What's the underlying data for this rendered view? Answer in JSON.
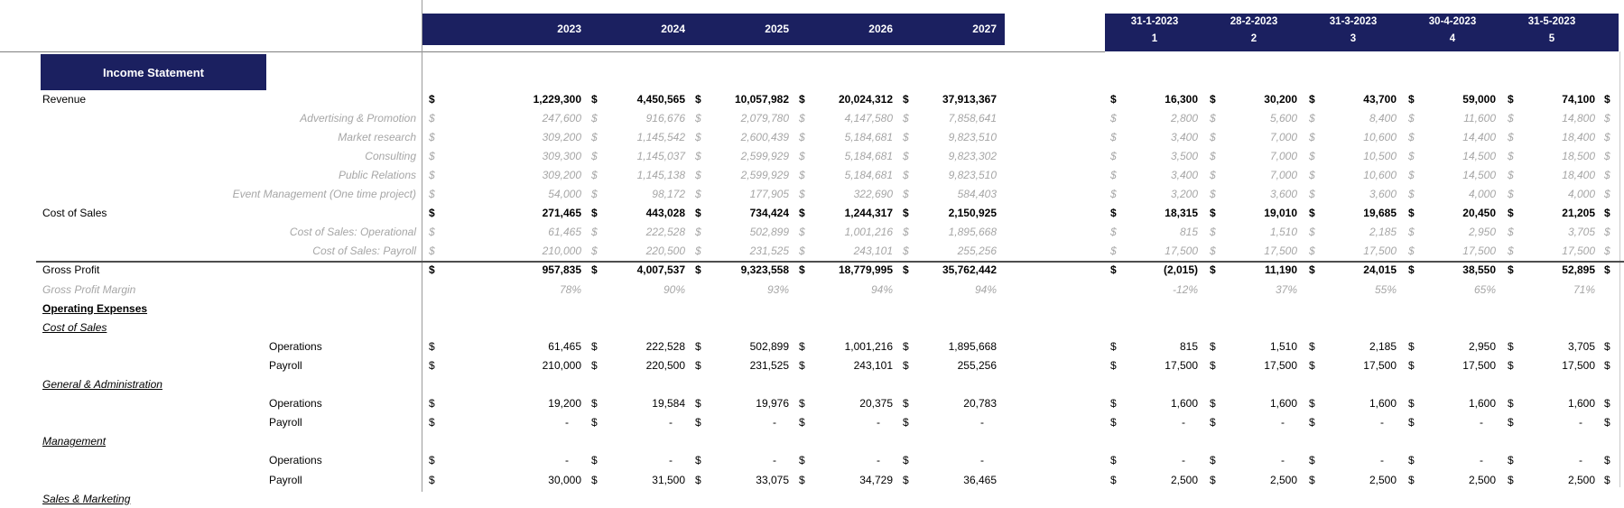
{
  "title": "Income Statement",
  "currency_symbol": "$",
  "colors": {
    "header_navy": "#1b2060",
    "gray_text": "#a6a6a6",
    "grid_gray": "#808080"
  },
  "year_header": {
    "columns": [
      "2023",
      "2024",
      "2025",
      "2026",
      "2027"
    ]
  },
  "month_header": {
    "columns": [
      {
        "date": "31-1-2023",
        "num": "1"
      },
      {
        "date": "28-2-2023",
        "num": "2"
      },
      {
        "date": "31-3-2023",
        "num": "3"
      },
      {
        "date": "30-4-2023",
        "num": "4"
      },
      {
        "date": "31-5-2023",
        "num": "5"
      }
    ],
    "partial_sixth_column_currency": "$"
  },
  "rows": [
    {
      "label": "Revenue",
      "label_style": "main",
      "value_style": "bold",
      "years": [
        "1,229,300",
        "4,450,565",
        "10,057,982",
        "20,024,312",
        "37,913,367"
      ],
      "months": [
        "16,300",
        "30,200",
        "43,700",
        "59,000",
        "74,100"
      ]
    },
    {
      "label": "Advertising & Promotion",
      "label_style": "sub",
      "value_style": "gray",
      "years": [
        "247,600",
        "916,676",
        "2,079,780",
        "4,147,580",
        "7,858,641"
      ],
      "months": [
        "2,800",
        "5,600",
        "8,400",
        "11,600",
        "14,800"
      ]
    },
    {
      "label": "Market research",
      "label_style": "sub",
      "value_style": "gray",
      "years": [
        "309,200",
        "1,145,542",
        "2,600,439",
        "5,184,681",
        "9,823,510"
      ],
      "months": [
        "3,400",
        "7,000",
        "10,600",
        "14,400",
        "18,400"
      ]
    },
    {
      "label": "Consulting",
      "label_style": "sub",
      "value_style": "gray",
      "years": [
        "309,300",
        "1,145,037",
        "2,599,929",
        "5,184,681",
        "9,823,302"
      ],
      "months": [
        "3,500",
        "7,000",
        "10,500",
        "14,500",
        "18,500"
      ]
    },
    {
      "label": "Public Relations",
      "label_style": "sub",
      "value_style": "gray",
      "years": [
        "309,200",
        "1,145,138",
        "2,599,929",
        "5,184,681",
        "9,823,510"
      ],
      "months": [
        "3,400",
        "7,000",
        "10,600",
        "14,500",
        "18,400"
      ]
    },
    {
      "label": "Event Management (One time project)",
      "label_style": "sub",
      "value_style": "gray",
      "years": [
        "54,000",
        "98,172",
        "177,905",
        "322,690",
        "584,403"
      ],
      "months": [
        "3,200",
        "3,600",
        "3,600",
        "4,000",
        "4,000"
      ]
    },
    {
      "label": "Cost of Sales",
      "label_style": "main",
      "value_style": "bold",
      "years": [
        "271,465",
        "443,028",
        "734,424",
        "1,244,317",
        "2,150,925"
      ],
      "months": [
        "18,315",
        "19,010",
        "19,685",
        "20,450",
        "21,205"
      ]
    },
    {
      "label": "Cost of Sales: Operational",
      "label_style": "sub",
      "value_style": "gray",
      "years": [
        "61,465",
        "222,528",
        "502,899",
        "1,001,216",
        "1,895,668"
      ],
      "months": [
        "815",
        "1,510",
        "2,185",
        "2,950",
        "3,705"
      ]
    },
    {
      "label": "Cost of Sales: Payroll",
      "label_style": "sub",
      "value_style": "gray",
      "years": [
        "210,000",
        "220,500",
        "231,525",
        "243,101",
        "255,256"
      ],
      "months": [
        "17,500",
        "17,500",
        "17,500",
        "17,500",
        "17,500"
      ]
    },
    {
      "label": "Gross Profit",
      "label_style": "main",
      "value_style": "bold",
      "top_border": true,
      "years": [
        "957,835",
        "4,007,537",
        "9,323,558",
        "18,779,995",
        "35,762,442"
      ],
      "months": [
        "(2,015)",
        "11,190",
        "24,015",
        "38,550",
        "52,895"
      ]
    },
    {
      "label": "Gross Profit Margin",
      "label_style": "main-gray",
      "value_style": "gray",
      "percent": true,
      "years": [
        "78%",
        "90%",
        "93%",
        "94%",
        "94%"
      ],
      "months": [
        "-12%",
        "37%",
        "55%",
        "65%",
        "71%"
      ]
    },
    {
      "label": "Operating Expenses",
      "label_style": "section-bold"
    },
    {
      "label": "Cost of Sales",
      "label_style": "section-italic"
    },
    {
      "label": "Operations",
      "label_style": "indent",
      "value_style": "normal",
      "years": [
        "61,465",
        "222,528",
        "502,899",
        "1,001,216",
        "1,895,668"
      ],
      "months": [
        "815",
        "1,510",
        "2,185",
        "2,950",
        "3,705"
      ]
    },
    {
      "label": "Payroll",
      "label_style": "indent",
      "value_style": "normal",
      "years": [
        "210,000",
        "220,500",
        "231,525",
        "243,101",
        "255,256"
      ],
      "months": [
        "17,500",
        "17,500",
        "17,500",
        "17,500",
        "17,500"
      ]
    },
    {
      "label": "General & Administration",
      "label_style": "section-italic"
    },
    {
      "label": "Operations",
      "label_style": "indent",
      "value_style": "normal",
      "years": [
        "19,200",
        "19,584",
        "19,976",
        "20,375",
        "20,783"
      ],
      "months": [
        "1,600",
        "1,600",
        "1,600",
        "1,600",
        "1,600"
      ]
    },
    {
      "label": "Payroll",
      "label_style": "indent",
      "value_style": "normal",
      "years": [
        "-",
        "-",
        "-",
        "-",
        "-"
      ],
      "months": [
        "-",
        "-",
        "-",
        "-",
        "-"
      ]
    },
    {
      "label": "Management",
      "label_style": "section-italic"
    },
    {
      "label": "Operations",
      "label_style": "indent",
      "value_style": "normal",
      "years": [
        "-",
        "-",
        "-",
        "-",
        "-"
      ],
      "months": [
        "-",
        "-",
        "-",
        "-",
        "-"
      ]
    },
    {
      "label": "Payroll",
      "label_style": "indent",
      "value_style": "normal",
      "years": [
        "30,000",
        "31,500",
        "33,075",
        "34,729",
        "36,465"
      ],
      "months": [
        "2,500",
        "2,500",
        "2,500",
        "2,500",
        "2,500"
      ]
    },
    {
      "label": "Sales & Marketing",
      "label_style": "section-italic"
    }
  ]
}
